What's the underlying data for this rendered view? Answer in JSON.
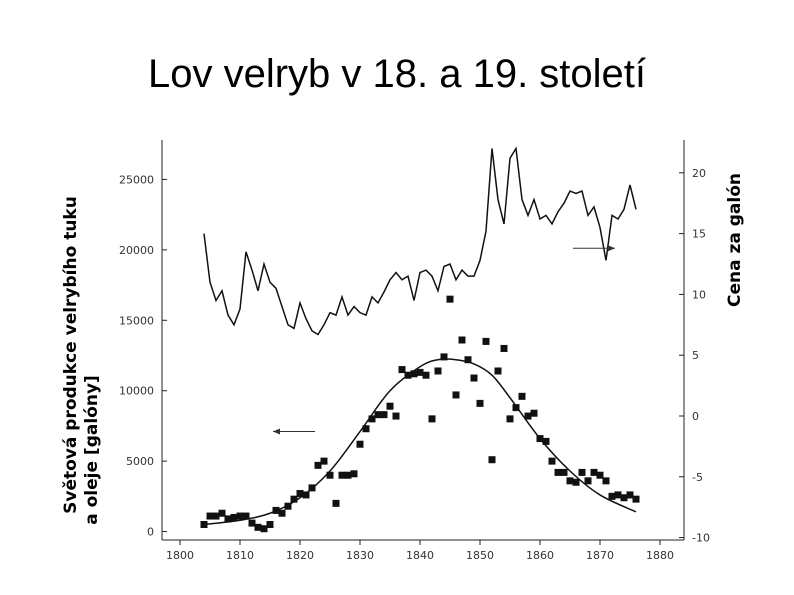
{
  "slide": {
    "title": "Lov velryb v 18. a 19. století"
  },
  "chart_data": {
    "type": "scatter",
    "title": "",
    "xlabel": "",
    "ylabel_left_line1": "Světová produkce velrybího tuku",
    "ylabel_left_line2": "a oleje [galóny]",
    "ylabel_right": "Cena za galón",
    "x_ticks": [
      "1800",
      "1810",
      "1820",
      "1830",
      "1840",
      "1850",
      "1860",
      "1870",
      "1880"
    ],
    "x_ticks_values": [
      1800,
      1810,
      1820,
      1830,
      1840,
      1850,
      1860,
      1870,
      1880
    ],
    "xlim": [
      1797,
      1884
    ],
    "y_left_ticks": [
      "0",
      "5000",
      "10000",
      "15000",
      "20000",
      "25000"
    ],
    "y_left_ticks_values": [
      0,
      5000,
      10000,
      15000,
      20000,
      25000
    ],
    "ylim_left": [
      -600,
      27800
    ],
    "y_right_ticks": [
      "-10",
      "-5",
      "0",
      "5",
      "10",
      "15",
      "20"
    ],
    "y_right_ticks_values": [
      -10,
      -5,
      0,
      5,
      10,
      15,
      20
    ],
    "ylim_right": [
      -10.2,
      22.7
    ],
    "grid": false,
    "series": [
      {
        "axis": "left",
        "style": "markers",
        "x": [
          1804,
          1805,
          1806,
          1807,
          1808,
          1809,
          1810,
          1811,
          1812,
          1813,
          1814,
          1815,
          1816,
          1817,
          1818,
          1819,
          1820,
          1821,
          1822,
          1823,
          1824,
          1825,
          1826,
          1827,
          1828,
          1829,
          1830,
          1831,
          1832,
          1833,
          1834,
          1835,
          1836,
          1837,
          1838,
          1839,
          1840,
          1841,
          1842,
          1843,
          1844,
          1845,
          1846,
          1847,
          1848,
          1849,
          1850,
          1851,
          1852,
          1853,
          1854,
          1855,
          1856,
          1857,
          1858,
          1859,
          1860,
          1861,
          1862,
          1863,
          1864,
          1865,
          1866,
          1867,
          1868,
          1869,
          1870,
          1871,
          1872,
          1873,
          1874,
          1875,
          1876
        ],
        "values": [
          500,
          1100,
          1100,
          1300,
          900,
          1000,
          1100,
          1100,
          600,
          300,
          200,
          500,
          1500,
          1300,
          1800,
          2300,
          2700,
          2600,
          3100,
          4700,
          5000,
          4000,
          2000,
          4000,
          4000,
          4100,
          6200,
          7300,
          8000,
          8300,
          8300,
          8900,
          8200,
          11500,
          11100,
          11200,
          11300,
          11100,
          8000,
          11400,
          12400,
          16500,
          9700,
          13600,
          12200,
          10900,
          9100,
          13500,
          5100,
          11400,
          13000,
          8000,
          8800,
          9600,
          8200,
          8400,
          6600,
          6400,
          5000,
          4200,
          4200,
          3600,
          3500,
          4200,
          3600,
          4200,
          4000,
          3600,
          2500,
          2600,
          2400,
          2600,
          2300
        ]
      },
      {
        "axis": "left",
        "style": "smooth",
        "x": [
          1804,
          1810,
          1815,
          1820,
          1825,
          1830,
          1835,
          1840,
          1843,
          1846,
          1849,
          1852,
          1855,
          1860,
          1865,
          1870,
          1876
        ],
        "values": [
          500,
          800,
          1300,
          2400,
          4300,
          7100,
          10000,
          11700,
          12200,
          12200,
          11900,
          11100,
          9500,
          6600,
          4300,
          2600,
          1400
        ]
      },
      {
        "axis": "right",
        "style": "line",
        "x": [
          1804,
          1805,
          1806,
          1807,
          1808,
          1809,
          1810,
          1811,
          1812,
          1813,
          1814,
          1815,
          1816,
          1817,
          1818,
          1819,
          1820,
          1821,
          1822,
          1823,
          1824,
          1825,
          1826,
          1827,
          1828,
          1829,
          1830,
          1831,
          1832,
          1833,
          1834,
          1835,
          1836,
          1837,
          1838,
          1839,
          1840,
          1841,
          1842,
          1843,
          1844,
          1845,
          1846,
          1847,
          1848,
          1849,
          1850,
          1851,
          1852,
          1853,
          1854,
          1855,
          1856,
          1857,
          1858,
          1859,
          1860,
          1861,
          1862,
          1863,
          1864,
          1865,
          1866,
          1867,
          1868,
          1869,
          1870,
          1871,
          1872,
          1873,
          1874,
          1875,
          1876
        ],
        "values": [
          15,
          11,
          9.5,
          10.3,
          8.3,
          7.5,
          8.8,
          13.5,
          12,
          10.3,
          12.5,
          11,
          10.5,
          9,
          7.5,
          7.2,
          9.3,
          8,
          7,
          6.7,
          7.5,
          8.5,
          8.3,
          9.8,
          8.3,
          9,
          8.5,
          8.3,
          9.8,
          9.3,
          10.2,
          11.2,
          11.8,
          11.2,
          11.5,
          9.5,
          11.8,
          12,
          11.5,
          10.3,
          12.3,
          12.5,
          11.2,
          12,
          11.5,
          11.5,
          12.8,
          15.2,
          22,
          17.8,
          15.8,
          21.2,
          22,
          17.8,
          16.5,
          17.8,
          16.2,
          16.5,
          15.8,
          16.8,
          17.5,
          18.5,
          18.3,
          18.5,
          16.5,
          17.2,
          15.5,
          12.8,
          16.5,
          16.2,
          17,
          19,
          17
        ]
      }
    ],
    "annotations": [
      {
        "type": "arrow",
        "direction": "left",
        "points_to": "left axis",
        "at_x": 1819,
        "at_y_left": 7100
      },
      {
        "type": "arrow",
        "direction": "right",
        "points_to": "right axis",
        "at_x": 1869,
        "at_y_right": 13.8
      }
    ]
  }
}
